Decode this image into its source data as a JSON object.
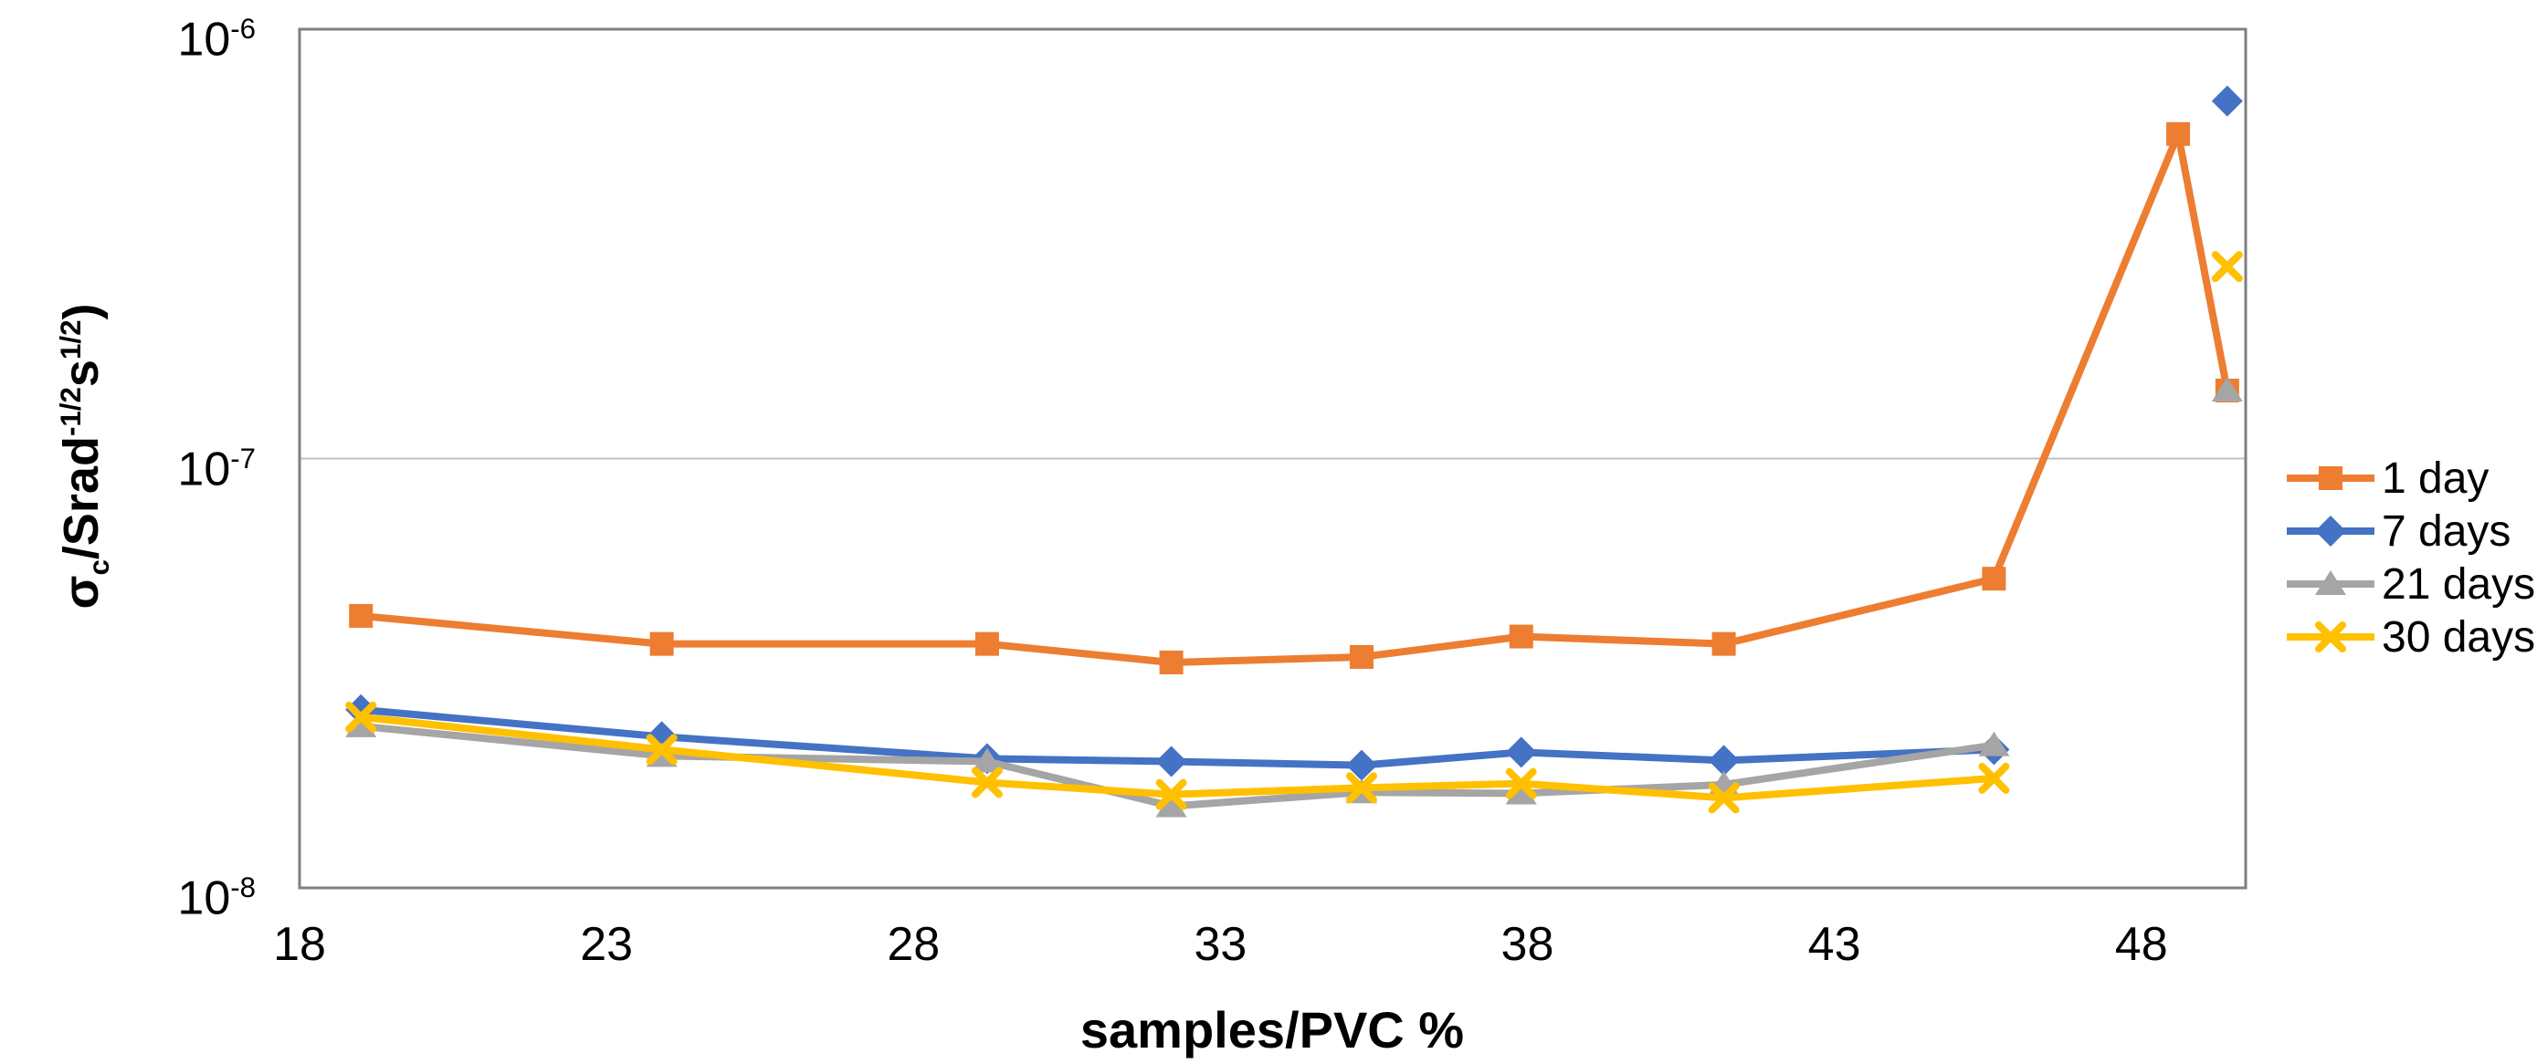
{
  "chart_data": {
    "type": "line",
    "title": "",
    "xlabel": "samples/PVC %",
    "ylabel": "σc/Srad-1/2s1/2)",
    "ylabel_parts": [
      {
        "t": "σ"
      },
      {
        "t": "c",
        "s": "sub"
      },
      {
        "t": "/Srad"
      },
      {
        "t": "-1/2",
        "s": "sup"
      },
      {
        "t": "s"
      },
      {
        "t": "1/2",
        "s": "sup"
      },
      {
        "t": ")"
      }
    ],
    "y_scale": "log",
    "ylim": [
      1e-08,
      1e-06
    ],
    "y_ticks": [
      1e-06,
      1e-07,
      1e-08
    ],
    "gridlines": [
      1e-07
    ],
    "xlim": [
      18,
      49.7
    ],
    "x_ticks": [
      18,
      23,
      28,
      33,
      38,
      43,
      48
    ],
    "grid": "horizontal-major-only",
    "legend_position": "right",
    "x": [
      19.0,
      23.9,
      29.2,
      32.2,
      35.3,
      37.9,
      41.2,
      45.6,
      48.6,
      49.4
    ],
    "series": [
      {
        "name": "1 day",
        "color": "#ED7D31",
        "marker": "square",
        "values": [
          4.3e-08,
          3.7e-08,
          3.7e-08,
          3.35e-08,
          3.45e-08,
          3.85e-08,
          3.7e-08,
          5.25e-08,
          5.7e-07,
          1.44e-07
        ]
      },
      {
        "name": "7 days",
        "color": "#4472C4",
        "marker": "diamond",
        "values": [
          2.6e-08,
          2.25e-08,
          2e-08,
          1.97e-08,
          1.93e-08,
          2.07e-08,
          1.98e-08,
          2.1e-08,
          null,
          6.8e-07
        ]
      },
      {
        "name": "21 days",
        "color": "#A5A5A5",
        "marker": "triangle",
        "values": [
          2.38e-08,
          2.03e-08,
          1.97e-08,
          1.55e-08,
          1.67e-08,
          1.66e-08,
          1.74e-08,
          2.15e-08,
          null,
          1.44e-07
        ]
      },
      {
        "name": "30 days",
        "color": "#FFC000",
        "marker": "x",
        "values": [
          2.5e-08,
          2.1e-08,
          1.76e-08,
          1.65e-08,
          1.71e-08,
          1.75e-08,
          1.62e-08,
          1.8e-08,
          null,
          2.8e-07
        ]
      }
    ],
    "plot_border_color": "#7F7F7F",
    "gridline_color": "#BFBFBF"
  }
}
